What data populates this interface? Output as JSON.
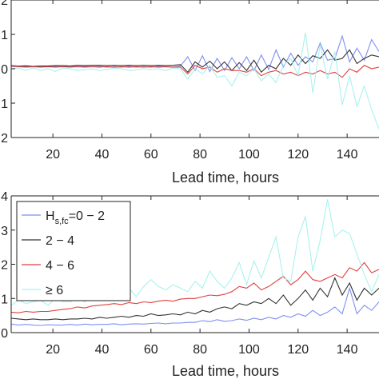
{
  "chart_data": [
    {
      "type": "line",
      "title": "",
      "xlabel": "Lead time, hours",
      "ylabel": "",
      "xlim": [
        3,
        153
      ],
      "ylim": [
        -2,
        2
      ],
      "xticks": [
        20,
        40,
        60,
        80,
        100,
        120,
        140
      ],
      "yticks": [
        -2,
        -1,
        0,
        1,
        2
      ],
      "ytick_labels": [
        "2",
        "1",
        "0",
        "1",
        "2"
      ],
      "grid": false,
      "x": [
        3,
        6,
        9,
        12,
        15,
        18,
        21,
        24,
        27,
        30,
        33,
        36,
        39,
        42,
        45,
        48,
        51,
        54,
        57,
        60,
        63,
        66,
        69,
        72,
        75,
        78,
        81,
        84,
        87,
        90,
        93,
        96,
        99,
        102,
        105,
        108,
        111,
        114,
        117,
        120,
        123,
        126,
        129,
        132,
        135,
        138,
        141,
        144,
        147,
        150,
        153
      ],
      "series": [
        {
          "color": "#7f8ff2",
          "values": [
            0.1,
            0.08,
            0.09,
            0.07,
            0.08,
            0.06,
            0.07,
            0.06,
            0.08,
            0.06,
            0.07,
            0.06,
            0.07,
            0.05,
            0.06,
            0.05,
            0.07,
            0.05,
            0.06,
            0.05,
            0.07,
            0.06,
            0.05,
            0.08,
            0.35,
            -0.05,
            0.38,
            -0.08,
            0.3,
            -0.05,
            0.32,
            0.0,
            0.35,
            -0.05,
            0.4,
            -0.02,
            0.55,
            0.05,
            0.45,
            0.1,
            0.35,
            0.2,
            0.75,
            0.25,
            0.3,
            0.95,
            0.2,
            0.6,
            0.25,
            0.85,
            0.5
          ]
        },
        {
          "color": "#333333",
          "values": [
            0.08,
            0.07,
            0.08,
            0.07,
            0.08,
            0.08,
            0.09,
            0.09,
            0.08,
            0.1,
            0.09,
            0.1,
            0.1,
            0.09,
            0.1,
            0.09,
            0.1,
            0.09,
            0.1,
            0.09,
            0.1,
            0.09,
            0.1,
            0.12,
            -0.1,
            0.2,
            0.05,
            0.22,
            0.0,
            0.2,
            -0.05,
            0.18,
            -0.05,
            0.25,
            -0.1,
            0.1,
            0.0,
            0.3,
            0.1,
            0.4,
            0.15,
            0.38,
            0.3,
            0.55,
            0.25,
            0.3,
            0.55,
            0.15,
            0.3,
            0.4,
            0.35
          ]
        },
        {
          "color": "#e04040",
          "values": [
            0.07,
            0.06,
            0.05,
            0.06,
            0.05,
            0.06,
            0.05,
            0.06,
            0.05,
            0.06,
            0.05,
            0.06,
            0.05,
            0.06,
            0.05,
            0.06,
            0.05,
            0.06,
            0.05,
            0.06,
            0.05,
            0.06,
            0.05,
            0.05,
            -0.15,
            0.1,
            0.0,
            0.05,
            -0.1,
            0.0,
            -0.05,
            -0.05,
            -0.1,
            0.0,
            -0.2,
            -0.1,
            -0.05,
            -0.15,
            -0.1,
            -0.2,
            -0.1,
            -0.15,
            -0.05,
            -0.15,
            -0.1,
            -0.25,
            0.0,
            -0.1,
            0.1,
            0.0,
            0.05
          ]
        },
        {
          "color": "#a8f2ee",
          "values": [
            0.0,
            0.02,
            -0.05,
            0.03,
            -0.05,
            0.0,
            -0.08,
            0.02,
            0.0,
            -0.05,
            -0.02,
            0.0,
            -0.05,
            -0.02,
            0.02,
            0.0,
            -0.05,
            -0.03,
            0.0,
            -0.02,
            0.0,
            -0.05,
            0.02,
            0.0,
            -0.3,
            0.0,
            -0.15,
            0.1,
            -0.25,
            -0.2,
            -0.5,
            -0.1,
            -0.2,
            0.0,
            -0.35,
            -0.15,
            -0.4,
            0.1,
            0.3,
            -0.2,
            1.05,
            -0.7,
            0.7,
            -0.3,
            0.5,
            -1.05,
            -0.2,
            -1.1,
            -0.5,
            -1.2,
            -1.75
          ]
        }
      ]
    },
    {
      "type": "line",
      "title": "",
      "xlabel": "Lead time, hours",
      "ylabel": "",
      "xlim": [
        3,
        153
      ],
      "ylim": [
        0,
        4
      ],
      "xticks": [
        20,
        40,
        60,
        80,
        100,
        120,
        140
      ],
      "yticks": [
        0,
        1,
        2,
        3,
        4
      ],
      "ytick_labels": [
        "0",
        "1",
        "2",
        "3",
        "4"
      ],
      "grid": false,
      "legend": {
        "placement": "left",
        "entries": [
          {
            "main": "H",
            "sub": "s,fc",
            "rest": "=0 − 2"
          },
          {
            "main": "2 − 4",
            "sub": "",
            "rest": ""
          },
          {
            "main": "4 − 6",
            "sub": "",
            "rest": ""
          },
          {
            "main": "≥ 6",
            "sub": "",
            "rest": ""
          }
        ]
      },
      "x": [
        3,
        6,
        9,
        12,
        15,
        18,
        21,
        24,
        27,
        30,
        33,
        36,
        39,
        42,
        45,
        48,
        51,
        54,
        57,
        60,
        63,
        66,
        69,
        72,
        75,
        78,
        81,
        84,
        87,
        90,
        93,
        96,
        99,
        102,
        105,
        108,
        111,
        114,
        117,
        120,
        123,
        126,
        129,
        132,
        135,
        138,
        141,
        144,
        147,
        150,
        153
      ],
      "series": [
        {
          "color": "#7f8ff2",
          "values": [
            0.25,
            0.22,
            0.24,
            0.22,
            0.21,
            0.23,
            0.22,
            0.22,
            0.24,
            0.22,
            0.25,
            0.23,
            0.24,
            0.24,
            0.26,
            0.23,
            0.25,
            0.26,
            0.25,
            0.27,
            0.28,
            0.26,
            0.28,
            0.28,
            0.3,
            0.3,
            0.35,
            0.32,
            0.38,
            0.33,
            0.35,
            0.4,
            0.36,
            0.42,
            0.38,
            0.45,
            0.4,
            0.5,
            0.45,
            0.55,
            0.48,
            0.65,
            0.5,
            0.6,
            0.75,
            0.55,
            1.3,
            0.55,
            0.8,
            0.65,
            0.9
          ]
        },
        {
          "color": "#333333",
          "values": [
            0.42,
            0.4,
            0.38,
            0.4,
            0.38,
            0.38,
            0.4,
            0.38,
            0.4,
            0.4,
            0.42,
            0.4,
            0.45,
            0.42,
            0.45,
            0.48,
            0.45,
            0.5,
            0.48,
            0.55,
            0.5,
            0.52,
            0.55,
            0.52,
            0.6,
            0.55,
            0.65,
            0.6,
            0.7,
            0.75,
            0.7,
            0.85,
            0.8,
            0.9,
            0.85,
            1.0,
            0.85,
            1.1,
            0.8,
            1.0,
            1.25,
            0.95,
            1.3,
            1.05,
            1.6,
            1.1,
            1.45,
            0.95,
            1.3,
            1.1,
            1.3
          ]
        },
        {
          "color": "#e04040",
          "values": [
            0.6,
            0.58,
            0.62,
            0.6,
            0.62,
            0.62,
            0.65,
            0.68,
            0.7,
            0.75,
            0.72,
            0.78,
            0.8,
            0.82,
            0.85,
            0.82,
            0.88,
            0.85,
            0.9,
            0.88,
            0.92,
            0.95,
            0.92,
            0.98,
            1.0,
            1.0,
            1.05,
            1.1,
            1.08,
            1.12,
            1.2,
            1.35,
            1.3,
            1.45,
            1.25,
            1.35,
            1.5,
            1.65,
            1.4,
            1.55,
            1.8,
            1.55,
            1.5,
            1.6,
            1.7,
            1.6,
            1.9,
            1.8,
            2.05,
            1.75,
            1.85
          ]
        },
        {
          "color": "#a8f2ee",
          "values": [
            0.8,
            0.95,
            0.85,
            0.9,
            0.95,
            0.8,
            1.0,
            0.9,
            0.9,
            1.0,
            0.9,
            1.05,
            0.95,
            1.1,
            1.2,
            1.0,
            1.3,
            1.05,
            1.35,
            1.55,
            1.35,
            1.25,
            1.4,
            1.3,
            1.2,
            1.5,
            1.3,
            1.8,
            1.5,
            1.3,
            1.6,
            2.05,
            1.4,
            2.1,
            1.6,
            2.2,
            2.8,
            1.6,
            1.5,
            2.8,
            3.4,
            1.8,
            2.7,
            3.9,
            2.8,
            3.0,
            2.9,
            2.3,
            1.7,
            1.2,
            1.7
          ]
        }
      ]
    }
  ]
}
